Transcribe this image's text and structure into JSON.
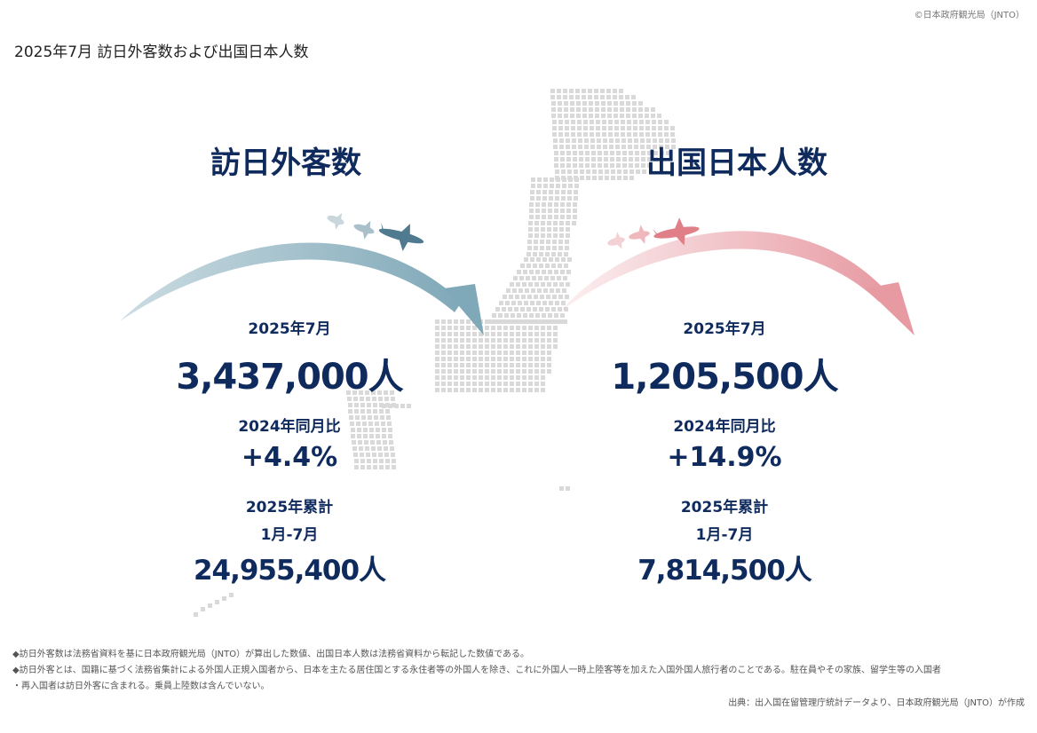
{
  "copyright": "©日本政府観光局（JNTO）",
  "title": "2025年7月 訪日外客数および出国日本人数",
  "inbound": {
    "heading": "訪日外客数",
    "month_label": "2025年7月",
    "count": "3,437,000人",
    "yoy_label": "2024年同月比",
    "yoy": "+4.4%",
    "cum_label": "2025年累計",
    "cum_period": "1月-7月",
    "cum": "24,955,400人",
    "color": "#7fa8b8"
  },
  "outbound": {
    "heading": "出国日本人数",
    "month_label": "2025年7月",
    "count": "1,205,500人",
    "yoy_label": "2024年同月比",
    "yoy": "+14.9%",
    "cum_label": "2025年累計",
    "cum_period": "1月-7月",
    "cum": "7,814,500人",
    "color": "#e79aa2"
  },
  "notes": [
    "◆訪日外客数は法務省資料を基に日本政府観光局（JNTO）が算出した数値、出国日本人数は法務省資料から転記した数値である。",
    "◆訪日外客とは、国籍に基づく法務省集計による外国人正規入国者から、日本を主たる居住国とする永住者等の外国人を除き、これに外国人一時上陸客等を加えた入国外国人旅行者のことである。駐在員やその家族、留学生等の入国者",
    "・再入国者は訪日外客に含まれる。乗員上陸数は含んでいない。"
  ],
  "source": "出典：出入国在留管理庁統計データより、日本政府観光局（JNTO）が作成"
}
